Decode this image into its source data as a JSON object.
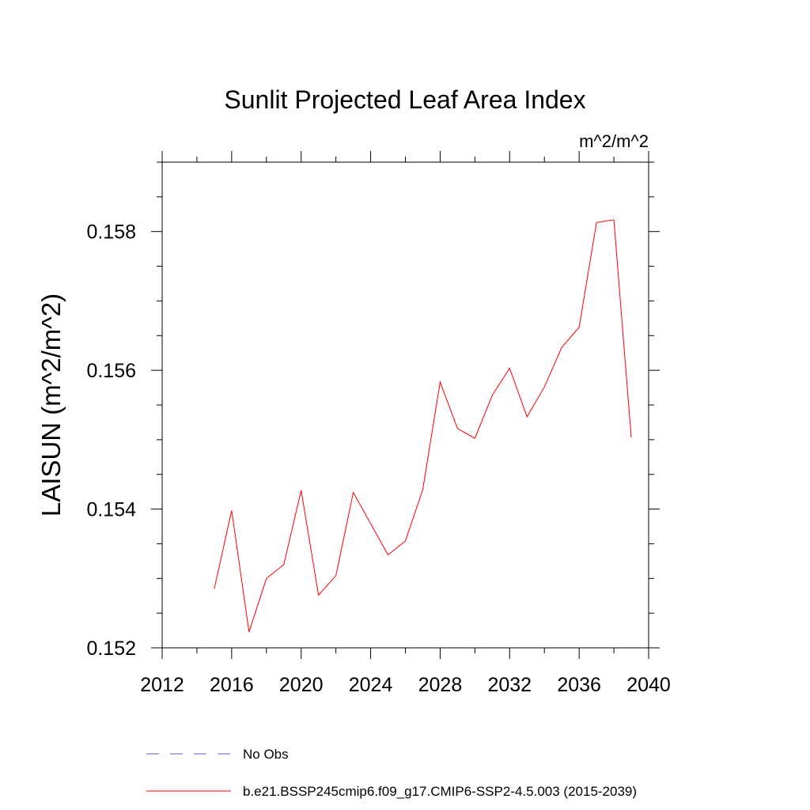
{
  "chart_data": {
    "type": "line",
    "title": "Sunlit Projected Leaf Area Index",
    "units_label": "m^2/m^2",
    "ylabel": "LAISUN  (m^2/m^2)",
    "xlabel": "",
    "xlim": [
      2012,
      2040
    ],
    "ylim": [
      0.152,
      0.159
    ],
    "x_ticks": [
      "2012",
      "2016",
      "2020",
      "2024",
      "2028",
      "2032",
      "2036",
      "2040"
    ],
    "y_ticks": [
      "0.152",
      "0.154",
      "0.156",
      "0.158"
    ],
    "grid": false,
    "legend_position": "bottom",
    "x": [
      2015,
      2016,
      2017,
      2018,
      2019,
      2020,
      2021,
      2022,
      2023,
      2024,
      2025,
      2026,
      2027,
      2028,
      2029,
      2030,
      2031,
      2032,
      2033,
      2034,
      2035,
      2036,
      2037,
      2038,
      2039
    ],
    "series": [
      {
        "name": "b.e21.BSSP245cmip6.f09_g17.CMIP6-SSP2-4.5.003 (2015-2039)",
        "color": "#ff0000",
        "values": [
          0.15285,
          0.15398,
          0.15223,
          0.153,
          0.1532,
          0.15427,
          0.15276,
          0.15304,
          0.15424,
          0.15379,
          0.15334,
          0.15354,
          0.15428,
          0.15583,
          0.15516,
          0.15502,
          0.15564,
          0.15603,
          0.15533,
          0.15576,
          0.15633,
          0.15662,
          0.15813,
          0.15817,
          0.15503
        ]
      }
    ],
    "legend": [
      {
        "label": "No Obs",
        "color": "#6a5acd",
        "style": "dashed"
      },
      {
        "label": "b.e21.BSSP245cmip6.f09_g17.CMIP6-SSP2-4.5.003 (2015-2039)",
        "color": "#ff0000",
        "style": "solid"
      }
    ]
  }
}
